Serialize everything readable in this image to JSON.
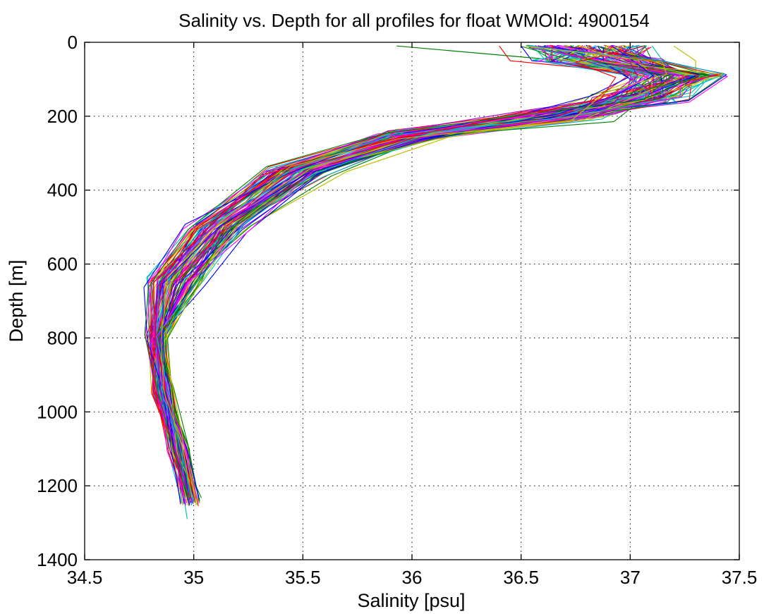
{
  "chart_data": {
    "type": "line",
    "title": "Salinity vs. Depth for all profiles for float WMOId: 4900154",
    "xlabel": "Salinity [psu]",
    "ylabel": "Depth [m]",
    "xlim": [
      34.5,
      37.5
    ],
    "ylim": [
      0,
      1400
    ],
    "y_reversed": true,
    "grid": true,
    "legend": "none",
    "x_ticks": [
      "34.5",
      "35",
      "35.5",
      "36",
      "36.5",
      "37",
      "37.5"
    ],
    "y_ticks": [
      "0",
      "200",
      "400",
      "600",
      "800",
      "1000",
      "1200",
      "1400"
    ],
    "series_colors": [
      "#ff0000",
      "#0000ff",
      "#008000",
      "#ff00ff",
      "#00bfbf",
      "#bfbf00",
      "#9900cc"
    ],
    "series": [
      {
        "x": [
          36.8,
          36.85,
          37.2,
          37.1,
          36.7,
          36.0,
          35.45,
          35.1,
          34.9,
          34.82,
          34.86,
          34.93,
          34.98
        ],
        "y": [
          10,
          50,
          90,
          150,
          200,
          250,
          350,
          500,
          650,
          800,
          950,
          1100,
          1240
        ]
      },
      {
        "x": [
          36.5,
          36.55,
          37.3,
          37.0,
          36.6,
          35.9,
          35.4,
          35.05,
          34.86,
          34.8,
          34.84,
          34.92,
          34.96
        ],
        "y": [
          10,
          50,
          90,
          150,
          200,
          250,
          350,
          500,
          650,
          800,
          950,
          1100,
          1240
        ]
      },
      {
        "x": [
          35.93,
          36.7,
          37.1,
          37.0,
          36.5,
          35.85,
          35.35,
          35.0,
          34.84,
          34.8,
          34.82,
          34.9,
          34.97
        ],
        "y": [
          10,
          50,
          90,
          150,
          200,
          250,
          350,
          500,
          650,
          800,
          950,
          1100,
          1240
        ]
      },
      {
        "x": [
          36.9,
          36.95,
          37.2,
          37.15,
          36.75,
          36.05,
          35.55,
          35.15,
          34.92,
          34.85,
          34.88,
          34.95,
          34.99
        ],
        "y": [
          10,
          50,
          90,
          150,
          200,
          250,
          350,
          500,
          650,
          800,
          950,
          1100,
          1240
        ]
      },
      {
        "x": [
          37.1,
          37.15,
          37.4,
          37.2,
          36.8,
          36.1,
          35.5,
          35.1,
          34.9,
          34.84,
          34.87,
          34.94,
          34.98
        ],
        "y": [
          10,
          50,
          90,
          150,
          200,
          250,
          350,
          500,
          650,
          800,
          950,
          1100,
          1240
        ]
      },
      {
        "x": [
          37.2,
          37.3,
          37.3,
          37.1,
          36.9,
          36.2,
          35.7,
          35.25,
          34.95,
          34.88,
          34.9,
          34.96,
          35.0
        ],
        "y": [
          10,
          50,
          90,
          150,
          200,
          250,
          350,
          500,
          650,
          800,
          950,
          1100,
          1240
        ]
      },
      {
        "x": [
          36.7,
          36.75,
          37.0,
          37.05,
          36.65,
          35.95,
          35.42,
          35.05,
          34.87,
          34.82,
          34.85,
          34.91,
          34.96
        ],
        "y": [
          10,
          50,
          90,
          150,
          200,
          250,
          350,
          500,
          650,
          800,
          950,
          1100,
          1240
        ]
      },
      {
        "x": [
          36.4,
          36.45,
          37.15,
          37.0,
          36.55,
          35.88,
          35.38,
          35.02,
          34.85,
          34.81,
          34.83,
          34.91,
          34.97
        ],
        "y": [
          10,
          50,
          90,
          150,
          200,
          250,
          350,
          500,
          650,
          800,
          950,
          1100,
          1240
        ]
      },
      {
        "x": [
          36.85,
          36.9,
          37.3,
          37.1,
          36.72,
          36.02,
          35.48,
          35.12,
          34.91,
          34.83,
          34.86,
          34.93,
          34.98
        ],
        "y": [
          10,
          50,
          90,
          150,
          200,
          250,
          350,
          500,
          650,
          800,
          950,
          1100,
          1240
        ]
      },
      {
        "x": [
          36.6,
          36.62,
          37.2,
          37.05,
          36.62,
          35.92,
          35.44,
          35.07,
          34.88,
          34.81,
          34.84,
          34.92,
          34.97
        ],
        "y": [
          10,
          50,
          90,
          150,
          200,
          250,
          350,
          500,
          650,
          800,
          950,
          1100,
          1240
        ]
      },
      {
        "x": [
          36.95,
          37.0,
          37.25,
          37.12,
          36.78,
          36.08,
          35.52,
          35.14,
          34.93,
          34.84,
          34.87,
          34.94,
          34.99
        ],
        "y": [
          10,
          50,
          90,
          150,
          200,
          250,
          350,
          500,
          650,
          800,
          950,
          1100,
          1240
        ]
      },
      {
        "x": [
          36.75,
          36.8,
          37.05,
          37.02,
          36.68,
          35.98,
          35.46,
          35.08,
          34.89,
          34.82,
          34.85,
          34.92,
          34.97
        ],
        "y": [
          10,
          50,
          90,
          150,
          200,
          250,
          350,
          500,
          650,
          800,
          950,
          1100,
          1290
        ]
      }
    ]
  }
}
